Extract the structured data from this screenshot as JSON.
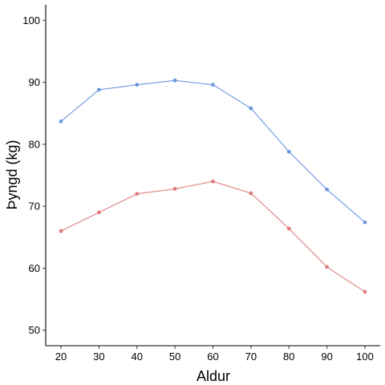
{
  "chart_data": {
    "type": "line",
    "title": "",
    "xlabel": "Aldur",
    "ylabel": "Þyngd (kg)",
    "x": [
      20,
      30,
      40,
      50,
      60,
      70,
      80,
      90,
      100
    ],
    "x_ticks": [
      "20",
      "30",
      "40",
      "50",
      "60",
      "70",
      "80",
      "90",
      "100"
    ],
    "y_ticks": [
      "50",
      "60",
      "70",
      "80",
      "90",
      "100"
    ],
    "xlim": [
      20,
      100
    ],
    "ylim": [
      47.5,
      102.5
    ],
    "grid": false,
    "legend": "none",
    "series": [
      {
        "color": "#6b96e0",
        "values": [
          83.7,
          88.8,
          89.6,
          90.3,
          89.6,
          85.8,
          78.8,
          72.7,
          67.4
        ]
      },
      {
        "color": "#e07b7b",
        "values": [
          66.0,
          69.0,
          72.0,
          72.8,
          74.0,
          72.1,
          66.4,
          60.2,
          56.2
        ]
      }
    ]
  }
}
